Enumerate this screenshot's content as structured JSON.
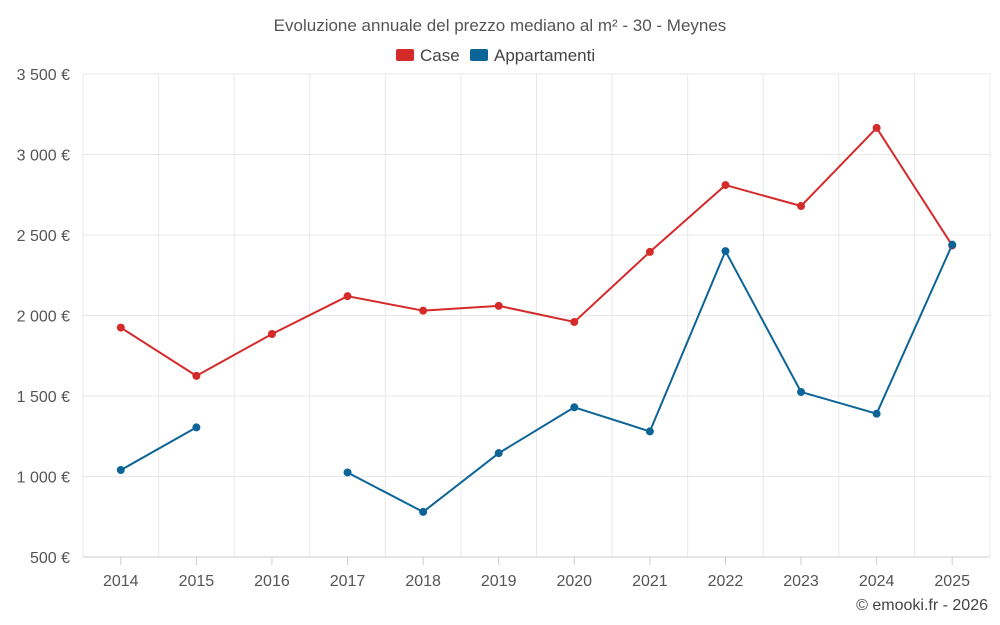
{
  "chart_data": {
    "type": "line",
    "title": "Evoluzione annuale del prezzo mediano al m² - 30 - Meynes",
    "categories": [
      "2014",
      "2015",
      "2016",
      "2017",
      "2018",
      "2019",
      "2020",
      "2021",
      "2022",
      "2023",
      "2024",
      "2025"
    ],
    "series": [
      {
        "name": "Case",
        "color": "#d42a2a",
        "values": [
          1925,
          1625,
          1885,
          2120,
          2030,
          2060,
          1960,
          2395,
          2810,
          2680,
          3165,
          2435
        ]
      },
      {
        "name": "Appartamenti",
        "color": "#0d6497",
        "values": [
          1040,
          1305,
          null,
          1025,
          780,
          1145,
          1430,
          1280,
          2400,
          1525,
          1390,
          2440
        ]
      }
    ],
    "ylim": [
      500,
      3500
    ],
    "yticks": [
      500,
      1000,
      1500,
      2000,
      2500,
      3000,
      3500
    ],
    "ytick_labels": [
      "500 €",
      "1 000 €",
      "1 500 €",
      "2 000 €",
      "2 500 €",
      "3 000 €",
      "3 500 €"
    ],
    "xlabel": "",
    "ylabel": "",
    "grid": true,
    "legend_position": "top-center"
  },
  "credit": "© emooki.fr - 2026"
}
